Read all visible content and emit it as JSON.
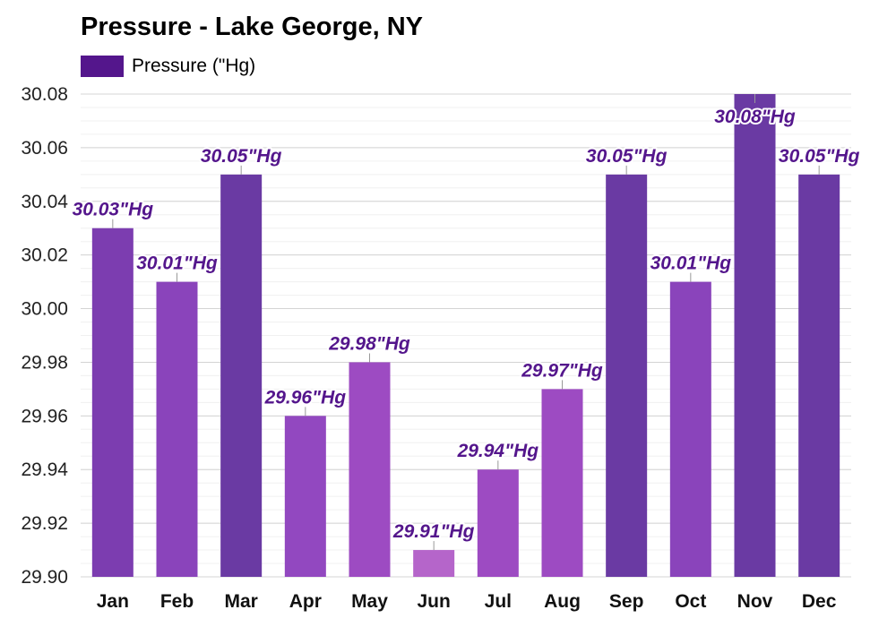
{
  "title": "Pressure - Lake George, NY",
  "legend": {
    "label": "Pressure (\"Hg)",
    "color": "#54168c"
  },
  "chart_data": {
    "type": "bar",
    "title": "Pressure - Lake George, NY",
    "categories": [
      "Jan",
      "Feb",
      "Mar",
      "Apr",
      "May",
      "Jun",
      "Jul",
      "Aug",
      "Sep",
      "Oct",
      "Nov",
      "Dec"
    ],
    "series": [
      {
        "name": "Pressure (\"Hg)",
        "values": [
          30.03,
          30.01,
          30.05,
          29.96,
          29.98,
          29.91,
          29.94,
          29.97,
          30.05,
          30.01,
          30.08,
          30.05
        ],
        "labels": [
          "30.03\"Hg",
          "30.01\"Hg",
          "30.05\"Hg",
          "29.96\"Hg",
          "29.98\"Hg",
          "29.91\"Hg",
          "29.94\"Hg",
          "29.97\"Hg",
          "30.05\"Hg",
          "30.01\"Hg",
          "30.08\"Hg",
          "30.05\"Hg"
        ],
        "colors": [
          "#7c3db0",
          "#8a44bb",
          "#6a3aa3",
          "#9248c0",
          "#9d4bc2",
          "#b565ca",
          "#9d4bc2",
          "#9d4bc2",
          "#6a3aa3",
          "#8a44bb",
          "#6a3aa3",
          "#6a3aa3"
        ]
      }
    ],
    "yticks": [
      "29.90",
      "29.92",
      "29.94",
      "29.96",
      "29.98",
      "30.00",
      "30.02",
      "30.04",
      "30.06",
      "30.08"
    ],
    "ylim": [
      29.9,
      30.08
    ],
    "xlabel": "",
    "ylabel": "",
    "grid": true,
    "legend_position": "top-left",
    "label_color": "#54168c"
  }
}
